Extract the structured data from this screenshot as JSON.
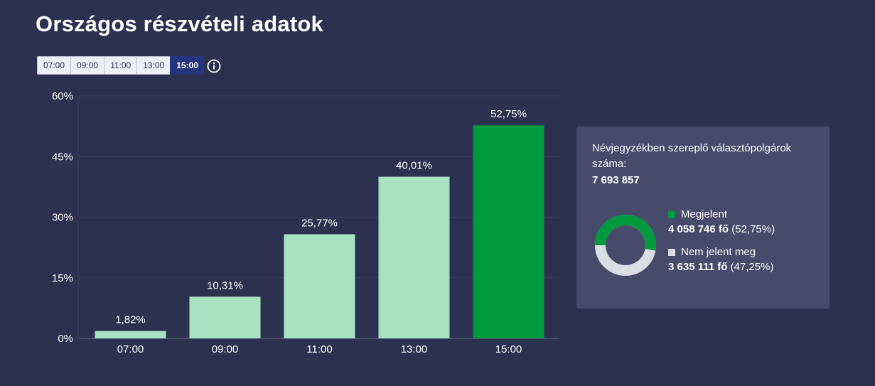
{
  "page_title": "Országos részvételi adatok",
  "time_buttons": [
    {
      "label": "07:00",
      "active": false
    },
    {
      "label": "09:00",
      "active": false
    },
    {
      "label": "11:00",
      "active": false
    },
    {
      "label": "13:00",
      "active": false
    },
    {
      "label": "15:00",
      "active": true
    }
  ],
  "info_icon": "info-circle-icon",
  "colors": {
    "background": "#2c3150",
    "bar_default": "#a8e2c0",
    "bar_highlight": "#009a3e",
    "panel_bg": "#474b6b",
    "absent": "#dadde3",
    "active_button": "#26337e"
  },
  "chart_data": {
    "type": "bar",
    "categories": [
      "07:00",
      "09:00",
      "11:00",
      "13:00",
      "15:00"
    ],
    "values": [
      1.82,
      10.31,
      25.77,
      40.01,
      52.75
    ],
    "data_labels": [
      "1,82%",
      "10,31%",
      "25,77%",
      "40,01%",
      "52,75%"
    ],
    "highlight_index": 4,
    "y_ticks": [
      0,
      15,
      30,
      45,
      60
    ],
    "y_tick_labels": [
      "0%",
      "15%",
      "30%",
      "45%",
      "60%"
    ],
    "ylim": [
      0,
      60
    ],
    "grid": true
  },
  "panel": {
    "label": "Névjegyzékben szereplő választópolgárok száma:",
    "total": "7 693 857",
    "present": {
      "label": "Megjelent",
      "count": "4 058 746 fő",
      "percent": "(52,75%)",
      "value": 52.75
    },
    "absent": {
      "label": "Nem jelent meg",
      "count": "3 635 111 fő",
      "percent": "(47,25%)",
      "value": 47.25
    }
  }
}
